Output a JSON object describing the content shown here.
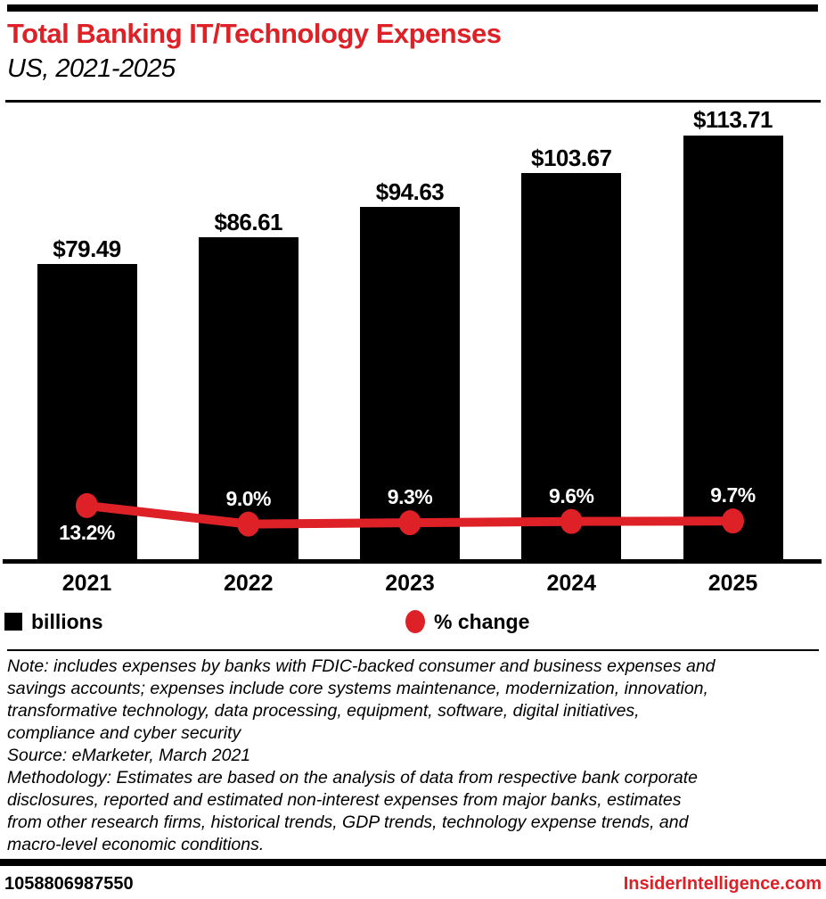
{
  "colors": {
    "accent_red": "#DD2127",
    "bar_black": "#000000",
    "background": "#ffffff"
  },
  "header": {
    "title": "Total Banking IT/Technology Expenses",
    "subtitle": "US, 2021-2025"
  },
  "chart_data": {
    "type": "bar+line",
    "title": "Total Banking IT/Technology Expenses",
    "subtitle": "US, 2021-2025",
    "categories": [
      "2021",
      "2022",
      "2023",
      "2024",
      "2025"
    ],
    "series": [
      {
        "name": "billions",
        "type": "bar",
        "color": "#000000",
        "values": [
          79.49,
          86.61,
          94.63,
          103.67,
          113.71
        ],
        "labels": [
          "$79.49",
          "$86.61",
          "$94.63",
          "$103.67",
          "$113.71"
        ]
      },
      {
        "name": "% change",
        "type": "line",
        "color": "#DD2127",
        "values": [
          13.2,
          9.0,
          9.3,
          9.6,
          9.7
        ],
        "labels": [
          "13.2%",
          "9.0%",
          "9.3%",
          "9.6%",
          "9.7%"
        ],
        "label_positions": [
          "below",
          "above",
          "above",
          "above",
          "above"
        ]
      }
    ],
    "legend": [
      {
        "label": "billions",
        "marker": "square",
        "color": "#000000"
      },
      {
        "label": "% change",
        "marker": "circle",
        "color": "#DD2127"
      }
    ],
    "xlabel": "",
    "ylabel": "",
    "grid": false,
    "legend_position": "bottom"
  },
  "notes": {
    "lines": [
      "Note: includes expenses by banks with FDIC-backed consumer and business expenses and",
      "savings accounts; expenses include core systems maintenance, modernization, innovation,",
      "transformative technology, data processing, equipment, software, digital initiatives,",
      "compliance and cyber security",
      "Source: eMarketer, March 2021",
      "Methodology: Estimates are based on the analysis of data from respective bank corporate",
      "disclosures, reported and estimated non-interest expenses from major banks, estimates",
      "from other research firms, historical trends, GDP trends, technology expense trends, and",
      "macro-level economic conditions."
    ]
  },
  "footer": {
    "chart_id": "1058806987550",
    "site": "InsiderIntelligence.com"
  }
}
